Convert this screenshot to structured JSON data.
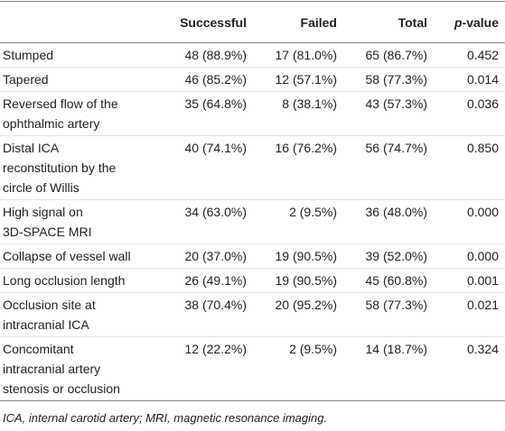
{
  "table": {
    "columns": [
      "Successful",
      "Failed",
      "Total",
      {
        "italic": "p",
        "rest": "-value"
      }
    ],
    "rows": [
      [
        [
          "Stumped"
        ],
        "48 (88.9%)",
        "17 (81.0%)",
        "65 (86.7%)",
        "0.452"
      ],
      [
        [
          "Tapered"
        ],
        "46 (85.2%)",
        "12 (57.1%)",
        "58 (77.3%)",
        "0.014"
      ],
      [
        [
          "Reversed flow of the",
          "ophthalmic artery"
        ],
        "35 (64.8%)",
        "8 (38.1%)",
        "43 (57.3%)",
        "0.036"
      ],
      [
        [
          "Distal ICA",
          "reconstitution by the",
          "circle of Willis"
        ],
        "40 (74.1%)",
        "16 (76.2%)",
        "56 (74.7%)",
        "0.850"
      ],
      [
        [
          "High signal on",
          "3D-SPACE MRI"
        ],
        "34 (63.0%)",
        "2 (9.5%)",
        "36 (48.0%)",
        "0.000"
      ],
      [
        [
          "Collapse of vessel wall"
        ],
        "20 (37.0%)",
        "19 (90.5%)",
        "39 (52.0%)",
        "0.000"
      ],
      [
        [
          "Long occlusion length"
        ],
        "26 (49.1%)",
        "19 (90.5%)",
        "45 (60.8%)",
        "0.001"
      ],
      [
        [
          "Occlusion site at",
          "intracranial ICA"
        ],
        "38 (70.4%)",
        "20 (95.2%)",
        "58 (77.3%)",
        "0.021"
      ],
      [
        [
          "Concomitant",
          "intracranial artery",
          "stenosis or occlusion"
        ],
        "12 (22.2%)",
        "2 (9.5%)",
        "14 (18.7%)",
        "0.324"
      ]
    ],
    "footnote": "ICA, internal carotid artery; MRI, magnetic resonance imaging."
  }
}
